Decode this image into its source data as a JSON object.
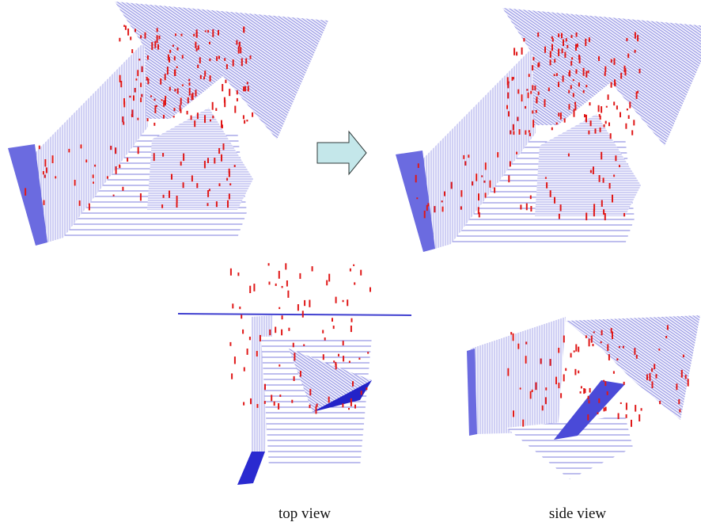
{
  "captions": {
    "top": "top view",
    "side": "side view"
  }
}
